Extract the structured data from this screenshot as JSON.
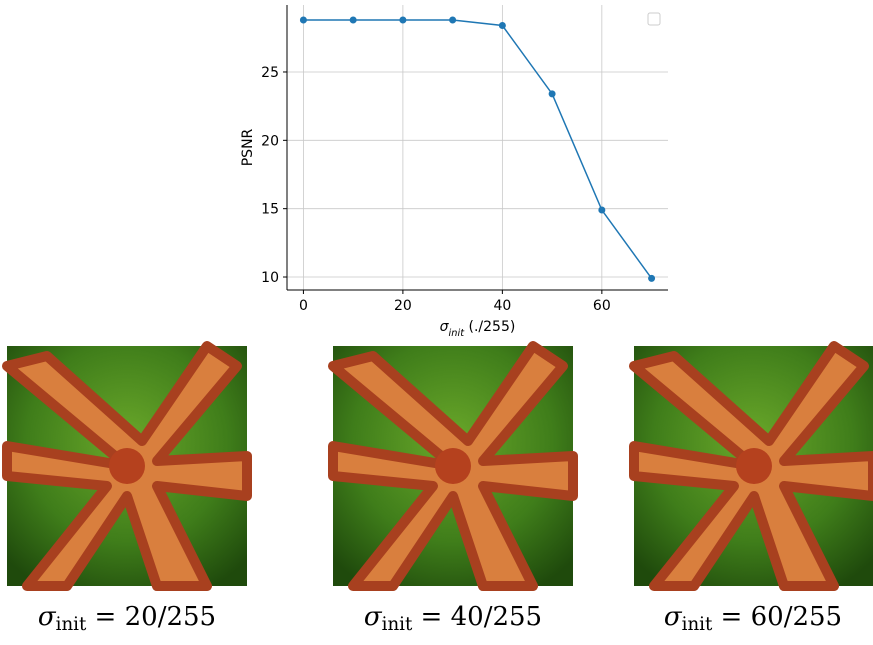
{
  "chart_data": {
    "type": "line",
    "y_label": "PSNR",
    "x_label": {
      "symbol": "σ",
      "subscript": "init",
      "text": " (./255)"
    },
    "x": [
      0,
      10,
      20,
      30,
      40,
      50,
      60,
      70
    ],
    "series": [
      {
        "color": "#1f77b4",
        "values": [
          28.8,
          28.8,
          28.8,
          28.8,
          28.4,
          23.4,
          14.9,
          9.9
        ]
      }
    ],
    "xlim": [
      -3.3,
      73.3
    ],
    "ylim": [
      9.05,
      29.9
    ],
    "xticks": [
      0,
      20,
      40,
      60
    ],
    "yticks": [
      10,
      15,
      20,
      25
    ],
    "grid": true
  },
  "captions": [
    {
      "symbol": "σ",
      "subscript": "init",
      "text": " = 20/255"
    },
    {
      "symbol": "σ",
      "subscript": "init",
      "text": " = 40/255"
    },
    {
      "symbol": "σ",
      "subscript": "init",
      "text": " = 60/255"
    }
  ]
}
